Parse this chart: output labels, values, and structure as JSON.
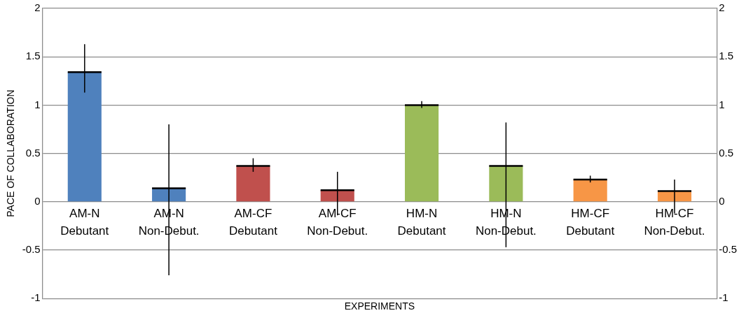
{
  "chart_data": {
    "type": "bar",
    "xlabel": "EXPERIMENTS",
    "ylabel": "PACE OF COLLABORATION",
    "categories": [
      "AM-N Debutant",
      "AM-N Non-Debut.",
      "AM-CF Debutant",
      "AM-CF Non-Debut.",
      "HM-N Debutant",
      "HM-N Non-Debut.",
      "HM-CF Debutant",
      "HM-CF Non-Debut."
    ],
    "values": [
      1.34,
      0.14,
      0.37,
      0.12,
      1.0,
      0.37,
      0.23,
      0.11
    ],
    "colors": [
      "#4f81bd",
      "#4f81bd",
      "#c0504d",
      "#c0504d",
      "#9bbb59",
      "#9bbb59",
      "#f79646",
      "#f79646"
    ],
    "errors": [
      [
        1.13,
        1.63
      ],
      [
        -0.76,
        0.8
      ],
      [
        0.31,
        0.45
      ],
      [
        -0.14,
        0.31
      ],
      [
        0.97,
        1.04
      ],
      [
        -0.47,
        0.82
      ],
      [
        0.2,
        0.27
      ],
      [
        -0.12,
        0.23
      ]
    ],
    "ylim": [
      -1,
      2
    ],
    "yticks": [
      -1,
      -0.5,
      0,
      0.5,
      1,
      1.5,
      2
    ],
    "y2lim": [
      -1,
      2
    ],
    "y2ticks": [
      -1,
      -0.5,
      0,
      0.5,
      1,
      1.5,
      2
    ],
    "grid": "y",
    "legend": false
  }
}
